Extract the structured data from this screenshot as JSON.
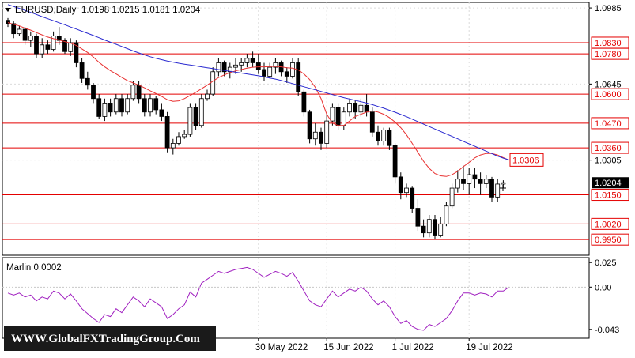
{
  "header": {
    "symbol_label": "EURUSD,Daily",
    "ohlc_values": "1.0198 1.0215 1.0181 1.0204"
  },
  "indicator": {
    "label": "Marlin 0.0002",
    "axis_ticks": [
      "0.025",
      "0.00",
      "-0.043"
    ]
  },
  "watermark": "WWW.GlobalFXTradingGroup.Com",
  "colors": {
    "up_candle": "#ffffff",
    "down_candle": "#000000",
    "ma_fast": "#e83030",
    "ma_slow": "#2a2ad0",
    "level_line": "#e40000",
    "oscillator": "#a020c0",
    "current_price_bg": "#000000"
  },
  "chart_data": {
    "type": "candlestick",
    "price_axis_ticks": [
      "1.0985",
      "1.0645",
      "1.0305"
    ],
    "price_axis_range": [
      0.988,
      1.101
    ],
    "levels": [
      {
        "label": "1.0830",
        "value": 1.083
      },
      {
        "label": "1.0780",
        "value": 1.078
      },
      {
        "label": "1.0600",
        "value": 1.06
      },
      {
        "label": "1.0470",
        "value": 1.047
      },
      {
        "label": "1.0360",
        "value": 1.036
      },
      {
        "label": "1.0150",
        "value": 1.015
      },
      {
        "label": "1.0020",
        "value": 1.002
      },
      {
        "label": "0.9950",
        "value": 0.995
      }
    ],
    "ma_label": {
      "label": "1.0306",
      "value": 1.0306
    },
    "current_price": {
      "label": "1.0204",
      "value": 1.0204
    },
    "date_labels": [
      {
        "label": "30 May 2022",
        "index": 44
      },
      {
        "label": "15 Jun 2022",
        "index": 56
      },
      {
        "label": "1 Jul 2022",
        "index": 68
      },
      {
        "label": "19 Jul 2022",
        "index": 81
      }
    ],
    "candles": [
      [
        1.093,
        1.094,
        1.09,
        1.0915
      ],
      [
        1.0915,
        1.0925,
        1.085,
        1.087
      ],
      [
        1.087,
        1.0905,
        1.086,
        1.089
      ],
      [
        1.089,
        1.09,
        1.082,
        1.084
      ],
      [
        1.084,
        1.088,
        1.081,
        1.086
      ],
      [
        1.086,
        1.087,
        1.076,
        1.078
      ],
      [
        1.078,
        1.085,
        1.076,
        1.082
      ],
      [
        1.082,
        1.084,
        1.078,
        1.08
      ],
      [
        1.08,
        1.088,
        1.079,
        1.086
      ],
      [
        1.086,
        1.09,
        1.082,
        1.084
      ],
      [
        1.084,
        1.085,
        1.078,
        1.079
      ],
      [
        1.079,
        1.085,
        1.077,
        1.083
      ],
      [
        1.083,
        1.084,
        1.072,
        1.074
      ],
      [
        1.074,
        1.076,
        1.065,
        1.067
      ],
      [
        1.067,
        1.07,
        1.062,
        1.064
      ],
      [
        1.064,
        1.065,
        1.056,
        1.058
      ],
      [
        1.058,
        1.06,
        1.049,
        1.05
      ],
      [
        1.05,
        1.058,
        1.048,
        1.056
      ],
      [
        1.056,
        1.058,
        1.05,
        1.052
      ],
      [
        1.052,
        1.06,
        1.051,
        1.058
      ],
      [
        1.058,
        1.06,
        1.05,
        1.052
      ],
      [
        1.052,
        1.06,
        1.051,
        1.058
      ],
      [
        1.058,
        1.066,
        1.057,
        1.064
      ],
      [
        1.064,
        1.066,
        1.056,
        1.058
      ],
      [
        1.058,
        1.06,
        1.05,
        1.052
      ],
      [
        1.052,
        1.06,
        1.05,
        1.058
      ],
      [
        1.058,
        1.059,
        1.051,
        1.053
      ],
      [
        1.053,
        1.056,
        1.048,
        1.05
      ],
      [
        1.05,
        1.052,
        1.034,
        1.036
      ],
      [
        1.036,
        1.04,
        1.033,
        1.038
      ],
      [
        1.038,
        1.043,
        1.037,
        1.041
      ],
      [
        1.041,
        1.044,
        1.04,
        1.042
      ],
      [
        1.042,
        1.056,
        1.041,
        1.054
      ],
      [
        1.054,
        1.056,
        1.044,
        1.046
      ],
      [
        1.046,
        1.06,
        1.045,
        1.058
      ],
      [
        1.058,
        1.062,
        1.057,
        1.06
      ],
      [
        1.06,
        1.072,
        1.059,
        1.07
      ],
      [
        1.07,
        1.076,
        1.068,
        1.074
      ],
      [
        1.074,
        1.075,
        1.068,
        1.07
      ],
      [
        1.07,
        1.074,
        1.067,
        1.072
      ],
      [
        1.072,
        1.076,
        1.069,
        1.073
      ],
      [
        1.073,
        1.076,
        1.07,
        1.074
      ],
      [
        1.074,
        1.078,
        1.072,
        1.076
      ],
      [
        1.076,
        1.079,
        1.072,
        1.074
      ],
      [
        1.074,
        1.078,
        1.069,
        1.071
      ],
      [
        1.071,
        1.074,
        1.066,
        1.068
      ],
      [
        1.068,
        1.074,
        1.067,
        1.072
      ],
      [
        1.072,
        1.076,
        1.069,
        1.074
      ],
      [
        1.074,
        1.075,
        1.068,
        1.07
      ],
      [
        1.07,
        1.072,
        1.065,
        1.068
      ],
      [
        1.068,
        1.076,
        1.067,
        1.074
      ],
      [
        1.074,
        1.076,
        1.059,
        1.061
      ],
      [
        1.061,
        1.062,
        1.05,
        1.052
      ],
      [
        1.052,
        1.053,
        1.038,
        1.04
      ],
      [
        1.04,
        1.047,
        1.037,
        1.043
      ],
      [
        1.043,
        1.045,
        1.035,
        1.038
      ],
      [
        1.038,
        1.051,
        1.036,
        1.048
      ],
      [
        1.048,
        1.056,
        1.046,
        1.054
      ],
      [
        1.054,
        1.056,
        1.044,
        1.046
      ],
      [
        1.046,
        1.054,
        1.044,
        1.052
      ],
      [
        1.052,
        1.058,
        1.05,
        1.056
      ],
      [
        1.056,
        1.057,
        1.049,
        1.052
      ],
      [
        1.052,
        1.058,
        1.05,
        1.055
      ],
      [
        1.055,
        1.06,
        1.05,
        1.052
      ],
      [
        1.052,
        1.054,
        1.041,
        1.043
      ],
      [
        1.043,
        1.046,
        1.037,
        1.039
      ],
      [
        1.039,
        1.045,
        1.037,
        1.044
      ],
      [
        1.044,
        1.045,
        1.035,
        1.037
      ],
      [
        1.037,
        1.038,
        1.02,
        1.023
      ],
      [
        1.023,
        1.025,
        1.013,
        1.016
      ],
      [
        1.016,
        1.02,
        1.014,
        1.018
      ],
      [
        1.018,
        1.019,
        1.007,
        1.009
      ],
      [
        1.009,
        1.013,
        0.999,
        1.001
      ],
      [
        1.001,
        1.004,
        0.996,
        0.998
      ],
      [
        0.998,
        1.006,
        0.996,
        1.004
      ],
      [
        1.004,
        1.006,
        0.995,
        0.997
      ],
      [
        0.997,
        1.005,
        0.996,
        1.002
      ],
      [
        1.002,
        1.012,
        1.001,
        1.01
      ],
      [
        1.01,
        1.02,
        1.009,
        1.018
      ],
      [
        1.018,
        1.026,
        1.016,
        1.022
      ],
      [
        1.022,
        1.028,
        1.017,
        1.02
      ],
      [
        1.02,
        1.027,
        1.015,
        1.024
      ],
      [
        1.024,
        1.027,
        1.018,
        1.022
      ],
      [
        1.022,
        1.025,
        1.015,
        1.02
      ],
      [
        1.02,
        1.024,
        1.018,
        1.022
      ],
      [
        1.022,
        1.023,
        1.012,
        1.014
      ],
      [
        1.014,
        1.022,
        1.012,
        1.0198
      ],
      [
        1.0198,
        1.0215,
        1.0181,
        1.0204
      ]
    ],
    "ma_fast_series": [
      1.092,
      1.0912,
      1.0905,
      1.0895,
      1.0886,
      1.0875,
      1.0865,
      1.0855,
      1.0848,
      1.0842,
      1.0835,
      1.0828,
      1.0818,
      1.0802,
      1.0786,
      1.0766,
      1.0742,
      1.0722,
      1.0705,
      1.069,
      1.0675,
      1.066,
      1.065,
      1.064,
      1.0628,
      1.0615,
      1.0603,
      1.059,
      1.0575,
      1.0568,
      1.057,
      1.058,
      1.0594,
      1.0608,
      1.0624,
      1.064,
      1.0658,
      1.0674,
      1.0686,
      1.0696,
      1.0704,
      1.071,
      1.0716,
      1.072,
      1.0722,
      1.0722,
      1.0723,
      1.0724,
      1.0722,
      1.0718,
      1.0716,
      1.0708,
      1.069,
      1.0665,
      1.063,
      1.058,
      1.051,
      1.047,
      1.046,
      1.046,
      1.048,
      1.05,
      1.051,
      1.052,
      1.0525,
      1.052,
      1.051,
      1.0495,
      1.0475,
      1.045,
      1.0418,
      1.038,
      1.034,
      1.03,
      1.0268,
      1.0245,
      1.0235,
      1.0232,
      1.024,
      1.0255,
      1.0276,
      1.0295,
      1.0315,
      1.0328,
      1.0335,
      1.0335,
      1.0328,
      1.0316,
      1.0305
    ],
    "ma_slow_series": [
      1.1,
      1.0992,
      1.0983,
      1.0974,
      1.0965,
      1.0956,
      1.0946,
      1.0937,
      1.0928,
      1.0919,
      1.091,
      1.09,
      1.0891,
      1.0881,
      1.0872,
      1.0862,
      1.0852,
      1.0842,
      1.0832,
      1.0823,
      1.0813,
      1.0803,
      1.0793,
      1.0784,
      1.0775,
      1.0767,
      1.076,
      1.0754,
      1.0748,
      1.0743,
      1.0738,
      1.0734,
      1.073,
      1.0726,
      1.0722,
      1.0718,
      1.0714,
      1.071,
      1.0706,
      1.0702,
      1.0698,
      1.0694,
      1.069,
      1.0686,
      1.0682,
      1.0677,
      1.0672,
      1.0667,
      1.0661,
      1.0654,
      1.0647,
      1.064,
      1.0633,
      1.0626,
      1.0619,
      1.0612,
      1.0605,
      1.0598,
      1.0591,
      1.0584,
      1.0578,
      1.0572,
      1.0566,
      1.056,
      1.0553,
      1.0545,
      1.0537,
      1.0528,
      1.0519,
      1.0509,
      1.0499,
      1.0488,
      1.0477,
      1.0466,
      1.0455,
      1.0444,
      1.0433,
      1.0422,
      1.0411,
      1.04,
      1.0389,
      1.0378,
      1.0367,
      1.0356,
      1.0345,
      1.0334,
      1.0323,
      1.0314,
      1.0306
    ],
    "oscillator": {
      "range": [
        -0.052,
        0.03
      ],
      "values": [
        -0.006,
        -0.008,
        -0.006,
        -0.01,
        -0.008,
        -0.014,
        -0.01,
        -0.012,
        -0.004,
        -0.006,
        -0.012,
        -0.007,
        -0.014,
        -0.022,
        -0.027,
        -0.032,
        -0.036,
        -0.028,
        -0.03,
        -0.022,
        -0.026,
        -0.018,
        -0.01,
        -0.014,
        -0.02,
        -0.012,
        -0.016,
        -0.02,
        -0.032,
        -0.028,
        -0.022,
        -0.018,
        -0.005,
        -0.01,
        0.004,
        0.008,
        0.012,
        0.016,
        0.014,
        0.016,
        0.018,
        0.019,
        0.02,
        0.018,
        0.014,
        0.01,
        0.013,
        0.016,
        0.014,
        0.011,
        0.015,
        0.006,
        -0.004,
        -0.014,
        -0.018,
        -0.02,
        -0.012,
        -0.004,
        -0.01,
        -0.006,
        -0.002,
        -0.004,
        0.0,
        -0.004,
        -0.012,
        -0.018,
        -0.014,
        -0.02,
        -0.03,
        -0.037,
        -0.034,
        -0.04,
        -0.043,
        -0.044,
        -0.038,
        -0.04,
        -0.036,
        -0.032,
        -0.024,
        -0.014,
        -0.006,
        -0.006,
        -0.008,
        -0.006,
        -0.007,
        -0.01,
        -0.004,
        -0.004,
        0.0
      ]
    }
  }
}
